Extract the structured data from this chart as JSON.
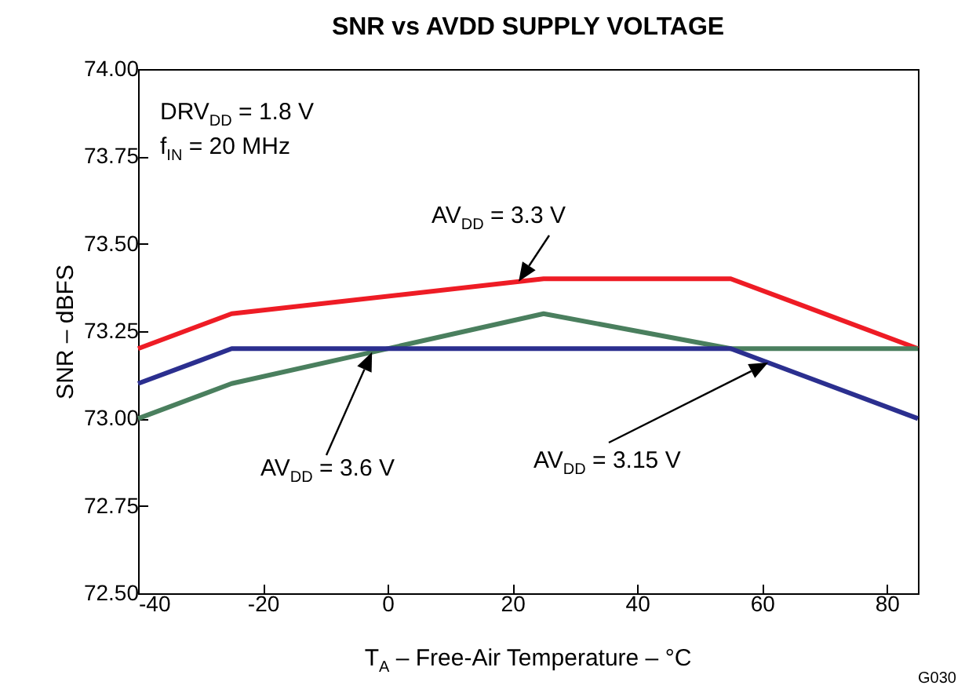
{
  "chart_data": {
    "type": "line",
    "title": "SNR vs AVDD SUPPLY VOLTAGE",
    "xlabel": "T$_{A}$ – Free-Air Temperature – °C",
    "ylabel": "SNR – dBFS",
    "xlim": [
      -40,
      85
    ],
    "xticks": [
      -40,
      -20,
      0,
      20,
      40,
      60,
      80
    ],
    "ylim": [
      72.5,
      74
    ],
    "yticks": [
      {
        "value": 72.5,
        "label": "72.50"
      },
      {
        "value": 72.75,
        "label": "72.75"
      },
      {
        "value": 73,
        "label": "73.00"
      },
      {
        "value": 73.25,
        "label": "73.25"
      },
      {
        "value": 73.5,
        "label": "73.50"
      },
      {
        "value": 73.75,
        "label": "73.75"
      },
      {
        "value": 74,
        "label": "74.00"
      }
    ],
    "grid": false,
    "marker": "none",
    "line_style": "solid",
    "annotations": [
      "DRV$_{DD}$ = 1.8 V",
      "f$_{IN}$ = 20 MHz",
      "G030"
    ],
    "series": [
      {
        "name": "AV$_{DD}$ = 3.3 V",
        "color": "#ee1c25",
        "x": [
          -40,
          -25,
          25,
          55,
          85
        ],
        "values": [
          73.2,
          73.3,
          73.4,
          73.4,
          73.2
        ]
      },
      {
        "name": "AV$_{DD}$ = 3.6 V",
        "color": "#4a7f5e",
        "x": [
          -40,
          -25,
          25,
          55,
          85
        ],
        "values": [
          73.0,
          73.1,
          73.3,
          73.2,
          73.2
        ]
      },
      {
        "name": "AV$_{DD}$ = 3.15 V",
        "color": "#2b2f8f",
        "x": [
          -40,
          -25,
          55,
          85
        ],
        "values": [
          73.1,
          73.2,
          73.2,
          73.0
        ]
      }
    ]
  }
}
